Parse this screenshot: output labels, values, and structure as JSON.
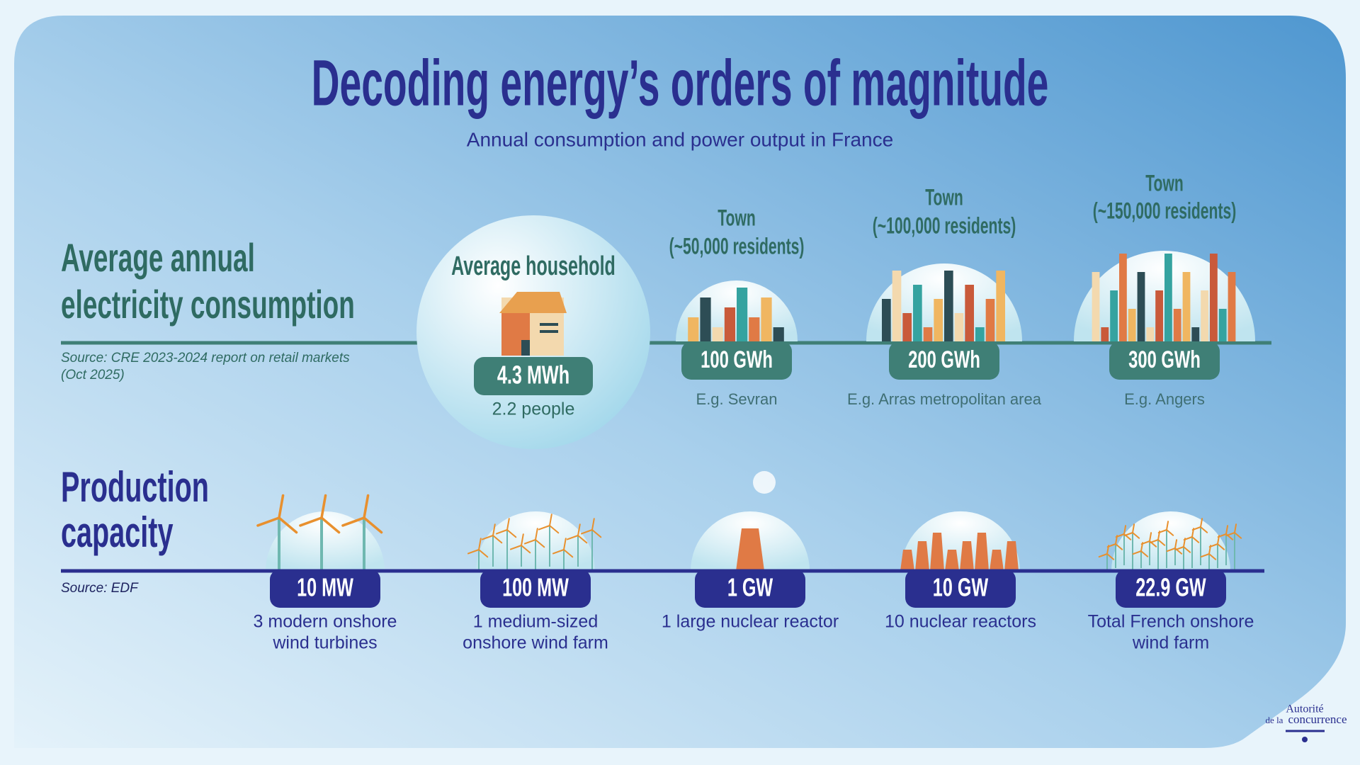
{
  "header": {
    "title": "Decoding energy’s orders of magnitude",
    "subtitle": "Annual consumption and power output in France"
  },
  "consumption": {
    "heading_lines": [
      "Average annual",
      "electricity consumption"
    ],
    "source_lines": [
      "Source: CRE 2023-2024 report on retail markets",
      "(Oct 2025)"
    ],
    "items": [
      {
        "label_lines": [
          "Average household"
        ],
        "value": "4.3 MWh",
        "note": "2.2 people"
      },
      {
        "label_lines": [
          "Town",
          "(~50,000 residents)"
        ],
        "value": "100 GWh",
        "note": "E.g. Sevran"
      },
      {
        "label_lines": [
          "Town",
          "(~100,000 residents)"
        ],
        "value": "200 GWh",
        "note": "E.g. Arras metropolitan area"
      },
      {
        "label_lines": [
          "Town",
          "(~150,000 residents)"
        ],
        "value": "300 GWh",
        "note": "E.g. Angers"
      }
    ]
  },
  "production": {
    "heading_lines": [
      "Production",
      "capacity"
    ],
    "source": "Source: EDF",
    "items": [
      {
        "value": "10 MW",
        "caption_lines": [
          "3 modern onshore",
          "wind turbines"
        ]
      },
      {
        "value": "100 MW",
        "caption_lines": [
          "1 medium-sized",
          "onshore wind farm"
        ]
      },
      {
        "value": "1 GW",
        "caption_lines": [
          "1 large nuclear reactor"
        ]
      },
      {
        "value": "10 GW",
        "caption_lines": [
          "10 nuclear reactors"
        ]
      },
      {
        "value": "22.9 GW",
        "caption_lines": [
          "Total French onshore",
          "wind farm"
        ]
      }
    ]
  },
  "logo": {
    "lines": [
      "Autorité",
      "de la",
      "concurrence"
    ]
  }
}
